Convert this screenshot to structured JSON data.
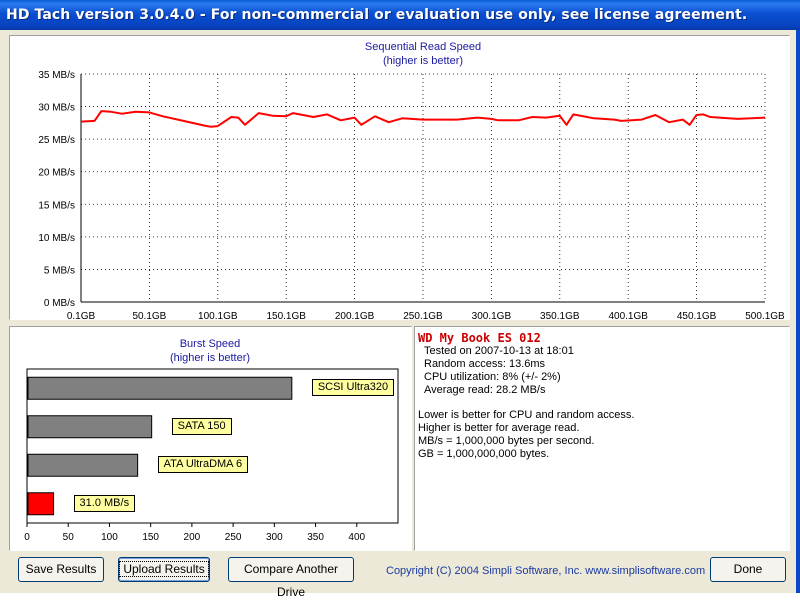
{
  "window": {
    "title": "HD Tach version 3.0.4.0  - For non-commercial or evaluation use only, see license agreement."
  },
  "chart_data": [
    {
      "type": "line",
      "title": "Sequential Read Speed",
      "subtitle": "(higher is better)",
      "y_ticks": [
        "0 MB/s",
        "5 MB/s",
        "10 MB/s",
        "15 MB/s",
        "20 MB/s",
        "25 MB/s",
        "30 MB/s",
        "35 MB/s"
      ],
      "x_ticks": [
        "0,1GB",
        "50,1GB",
        "100,1GB",
        "150,1GB",
        "200,1GB",
        "250,1GB",
        "300,1GB",
        "350,1GB",
        "400,1GB",
        "450,1GB",
        "500,1GB"
      ],
      "ylim": [
        0,
        35
      ],
      "xlim": [
        0.1,
        500.1
      ],
      "grid": true,
      "series": [
        {
          "color": "#ff0000",
          "x": [
            0.1,
            10,
            15,
            22,
            30,
            40,
            50,
            60,
            75,
            90,
            95,
            100,
            110,
            115,
            120,
            130,
            140,
            150,
            155,
            160,
            170,
            180,
            190,
            200,
            205,
            215,
            225,
            235,
            250,
            275,
            290,
            300,
            305,
            320,
            330,
            340,
            350,
            355,
            360,
            375,
            390,
            395,
            410,
            420,
            430,
            440,
            445,
            450,
            455,
            460,
            480,
            500.1
          ],
          "y": [
            27.7,
            27.8,
            29.3,
            29.2,
            28.9,
            29.2,
            29.1,
            28.5,
            27.8,
            27.1,
            26.9,
            27.0,
            28.4,
            28.3,
            27.2,
            29.0,
            28.6,
            28.5,
            29.0,
            28.8,
            28.4,
            28.8,
            27.9,
            28.3,
            27.2,
            28.5,
            27.6,
            28.2,
            28.0,
            28.0,
            28.3,
            28.1,
            27.9,
            27.9,
            28.4,
            28.3,
            28.6,
            27.2,
            28.8,
            28.2,
            28.0,
            27.8,
            28.0,
            28.7,
            27.6,
            28.0,
            27.2,
            28.7,
            28.8,
            28.4,
            28.1,
            28.3
          ]
        }
      ]
    },
    {
      "type": "bar",
      "title": "Burst Speed",
      "subtitle": "(higher is better)",
      "orientation": "horizontal",
      "xlim": [
        0,
        450
      ],
      "x_ticks": [
        "0",
        "50",
        "100",
        "150",
        "200",
        "250",
        "300",
        "350",
        "400"
      ],
      "categories": [
        "SCSI Ultra320",
        "SATA 150",
        "ATA UltraDMA 6",
        "31.0 MB/s"
      ],
      "values": [
        320,
        150,
        133,
        31
      ],
      "colors": [
        "#808080",
        "#808080",
        "#808080",
        "#ff0000"
      ]
    }
  ],
  "info": {
    "drive_name": "WD My Book ES 012",
    "tested_on": "Tested on 2007-10-13 at 18:01",
    "random_access": "Random access: 13.6ms",
    "cpu": "CPU utilization: 8% (+/- 2%)",
    "average_read": "Average read: 28.2 MB/s",
    "note1": "Lower is better for CPU and random access.",
    "note2": "Higher is better for average read.",
    "note3": "MB/s = 1,000,000 bytes per second.",
    "note4": "GB = 1,000,000,000 bytes."
  },
  "buttons": {
    "save": "Save Results",
    "upload": "Upload Results",
    "compare": "Compare Another Drive",
    "done": "Done"
  },
  "copyright": "Copyright (C) 2004 Simpli Software, Inc. www.simplisoftware.com"
}
